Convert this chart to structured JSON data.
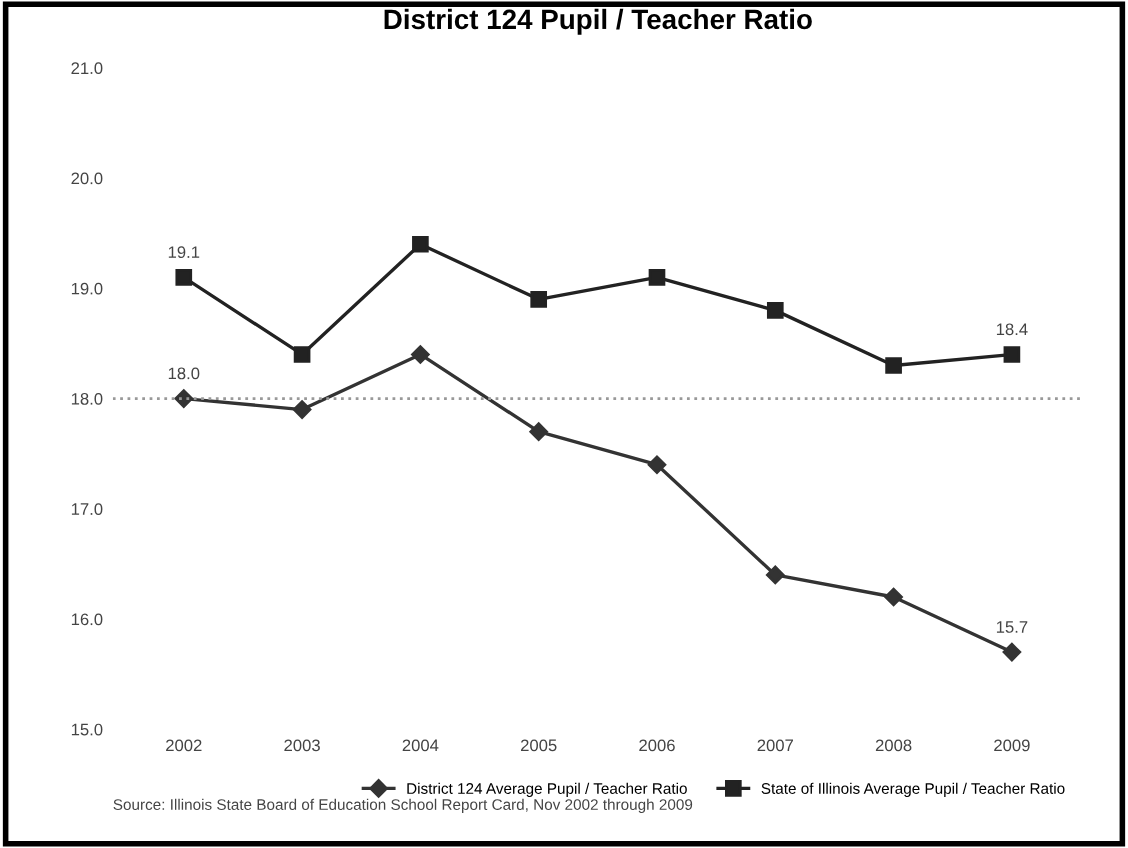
{
  "chart_data": {
    "type": "line",
    "title": "District 124 Pupil / Teacher Ratio",
    "categories": [
      "2002",
      "2003",
      "2004",
      "2005",
      "2006",
      "2007",
      "2008",
      "2009"
    ],
    "series": [
      {
        "name": "District 124 Average Pupil / Teacher Ratio",
        "color": "#333333",
        "marker": "diamond",
        "values": [
          18.0,
          17.9,
          18.4,
          17.7,
          17.4,
          16.4,
          16.2,
          15.7
        ],
        "value_labels": [
          "18.0",
          null,
          null,
          null,
          null,
          null,
          null,
          "15.7"
        ]
      },
      {
        "name": "State of Illinois Average Pupil / Teacher Ratio",
        "color": "#222222",
        "marker": "square",
        "values": [
          19.1,
          18.4,
          19.4,
          18.9,
          19.1,
          18.8,
          18.3,
          18.4
        ],
        "value_labels": [
          "19.1",
          null,
          null,
          null,
          null,
          null,
          null,
          "18.4"
        ]
      }
    ],
    "ylim": [
      15,
      21
    ],
    "yticks": [
      {
        "value": 15,
        "label": "15.0"
      },
      {
        "value": 16,
        "label": "16.0"
      },
      {
        "value": 17,
        "label": "17.0"
      },
      {
        "value": 18,
        "label": "18.0"
      },
      {
        "value": 19,
        "label": "19.0"
      },
      {
        "value": 20,
        "label": "20.0"
      },
      {
        "value": 21,
        "label": "21.0"
      }
    ],
    "ref_lines": [
      {
        "axis": "y",
        "value": 18,
        "label": null,
        "color": "#999999",
        "line_style": "dotted"
      }
    ],
    "legend": "bottom",
    "grid": false,
    "annotations": [
      "Source: Illinois State Board of Education School Report Card, Nov 2002 through 2009"
    ]
  }
}
